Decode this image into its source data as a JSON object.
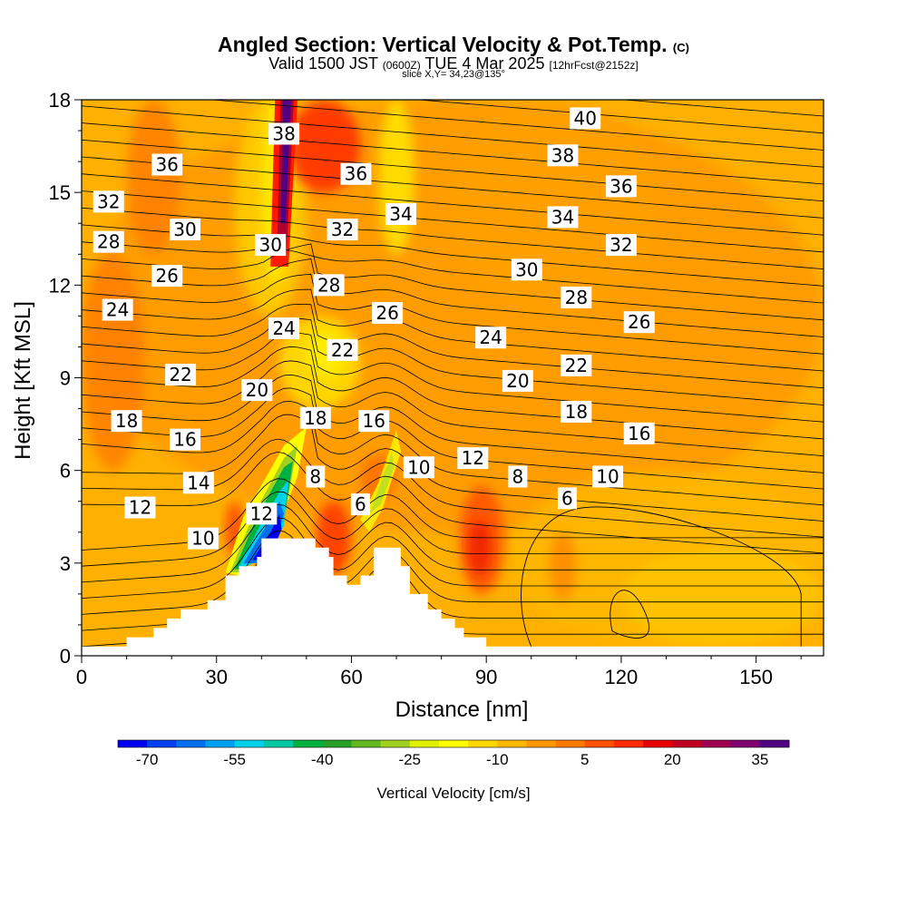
{
  "title": {
    "main": "Angled Section: Vertical Velocity & Pot.Temp.",
    "main_unit": "(C)",
    "valid_prefix": "Valid 1500 JST",
    "valid_utc": "(0600Z)",
    "valid_date": "TUE 4 Mar 2025",
    "forecast": "[12hrFcst@2152z]",
    "slice": "slice X,Y= 34,23@135°"
  },
  "chart_data": {
    "type": "heatmap",
    "xlabel": "Distance [nm]",
    "ylabel": "Height [Kft MSL]",
    "xlim": [
      0,
      165
    ],
    "ylim": [
      0,
      18
    ],
    "x_ticks": [
      0,
      30,
      60,
      90,
      120,
      150
    ],
    "y_ticks": [
      0,
      3,
      6,
      9,
      12,
      15,
      18
    ],
    "fill_variable": "Vertical Velocity [cm/s]",
    "colorbar": {
      "title": "Vertical Velocity [cm/s]",
      "tick_labels": [
        -70,
        -55,
        -40,
        -25,
        -10,
        5,
        20,
        35
      ],
      "colors": [
        "#0000ee",
        "#0040ee",
        "#0070ee",
        "#00a0f0",
        "#00d0e8",
        "#00c8a0",
        "#00b040",
        "#28a028",
        "#60b820",
        "#a0d020",
        "#e0f000",
        "#ffff00",
        "#ffd700",
        "#ffb800",
        "#ff9800",
        "#ff7800",
        "#ff5000",
        "#ff2a00",
        "#e80000",
        "#c00020",
        "#a00050",
        "#800070",
        "#500080"
      ],
      "vmin": -75,
      "vmax": 40
    },
    "theta_contour_labels": [
      {
        "x": 112,
        "y": 17.4,
        "label": "40"
      },
      {
        "x": 45,
        "y": 16.9,
        "label": "38"
      },
      {
        "x": 107,
        "y": 16.2,
        "label": "38"
      },
      {
        "x": 19,
        "y": 15.9,
        "label": "36"
      },
      {
        "x": 61,
        "y": 15.6,
        "label": "36"
      },
      {
        "x": 120,
        "y": 15.2,
        "label": "36"
      },
      {
        "x": 6,
        "y": 14.7,
        "label": "32"
      },
      {
        "x": 71,
        "y": 14.3,
        "label": "34"
      },
      {
        "x": 107,
        "y": 14.2,
        "label": "34"
      },
      {
        "x": 23,
        "y": 13.8,
        "label": "30"
      },
      {
        "x": 58,
        "y": 13.8,
        "label": "32"
      },
      {
        "x": 6,
        "y": 13.4,
        "label": "28"
      },
      {
        "x": 42,
        "y": 13.3,
        "label": "30"
      },
      {
        "x": 120,
        "y": 13.3,
        "label": "32"
      },
      {
        "x": 19,
        "y": 12.3,
        "label": "26"
      },
      {
        "x": 99,
        "y": 12.5,
        "label": "30"
      },
      {
        "x": 55,
        "y": 12.0,
        "label": "28"
      },
      {
        "x": 110,
        "y": 11.6,
        "label": "28"
      },
      {
        "x": 8,
        "y": 11.2,
        "label": "24"
      },
      {
        "x": 68,
        "y": 11.1,
        "label": "26"
      },
      {
        "x": 124,
        "y": 10.8,
        "label": "26"
      },
      {
        "x": 45,
        "y": 10.6,
        "label": "24"
      },
      {
        "x": 91,
        "y": 10.3,
        "label": "24"
      },
      {
        "x": 58,
        "y": 9.9,
        "label": "22"
      },
      {
        "x": 22,
        "y": 9.1,
        "label": "22"
      },
      {
        "x": 110,
        "y": 9.4,
        "label": "22"
      },
      {
        "x": 97,
        "y": 8.9,
        "label": "20"
      },
      {
        "x": 39,
        "y": 8.6,
        "label": "20"
      },
      {
        "x": 110,
        "y": 7.9,
        "label": "18"
      },
      {
        "x": 52,
        "y": 7.7,
        "label": "18"
      },
      {
        "x": 65,
        "y": 7.6,
        "label": "16"
      },
      {
        "x": 10,
        "y": 7.6,
        "label": "18"
      },
      {
        "x": 23,
        "y": 7.0,
        "label": "16"
      },
      {
        "x": 124,
        "y": 7.2,
        "label": "16"
      },
      {
        "x": 87,
        "y": 6.4,
        "label": "12"
      },
      {
        "x": 75,
        "y": 6.1,
        "label": "10"
      },
      {
        "x": 97,
        "y": 5.8,
        "label": "8"
      },
      {
        "x": 52,
        "y": 5.8,
        "label": "8"
      },
      {
        "x": 117,
        "y": 5.8,
        "label": "10"
      },
      {
        "x": 26,
        "y": 5.6,
        "label": "14"
      },
      {
        "x": 108,
        "y": 5.1,
        "label": "6"
      },
      {
        "x": 13,
        "y": 4.8,
        "label": "12"
      },
      {
        "x": 40,
        "y": 4.6,
        "label": "12"
      },
      {
        "x": 62,
        "y": 4.9,
        "label": "6"
      },
      {
        "x": 27,
        "y": 3.8,
        "label": "10"
      }
    ],
    "terrain_kft": [
      [
        0,
        0.3
      ],
      [
        10,
        0.3
      ],
      [
        10,
        0.6
      ],
      [
        16,
        0.6
      ],
      [
        16,
        0.9
      ],
      [
        19,
        0.9
      ],
      [
        19,
        1.2
      ],
      [
        22,
        1.2
      ],
      [
        22,
        1.5
      ],
      [
        28,
        1.5
      ],
      [
        28,
        1.8
      ],
      [
        32,
        1.8
      ],
      [
        32,
        2.6
      ],
      [
        35,
        2.6
      ],
      [
        35,
        2.9
      ],
      [
        39,
        2.9
      ],
      [
        39,
        3.2
      ],
      [
        40,
        3.2
      ],
      [
        40,
        3.8
      ],
      [
        52,
        3.8
      ],
      [
        52,
        3.5
      ],
      [
        55,
        3.5
      ],
      [
        55,
        3.2
      ],
      [
        56,
        3.2
      ],
      [
        56,
        2.6
      ],
      [
        59,
        2.6
      ],
      [
        59,
        2.3
      ],
      [
        62,
        2.3
      ],
      [
        62,
        2.6
      ],
      [
        65,
        2.6
      ],
      [
        65,
        3.5
      ],
      [
        71,
        3.5
      ],
      [
        71,
        2.9
      ],
      [
        73,
        2.9
      ],
      [
        73,
        2.0
      ],
      [
        77,
        2.0
      ],
      [
        77,
        1.5
      ],
      [
        80,
        1.5
      ],
      [
        80,
        1.2
      ],
      [
        83,
        1.2
      ],
      [
        83,
        0.9
      ],
      [
        85,
        0.9
      ],
      [
        85,
        0.6
      ],
      [
        90,
        0.6
      ],
      [
        90,
        0.3
      ],
      [
        165,
        0.3
      ]
    ]
  }
}
